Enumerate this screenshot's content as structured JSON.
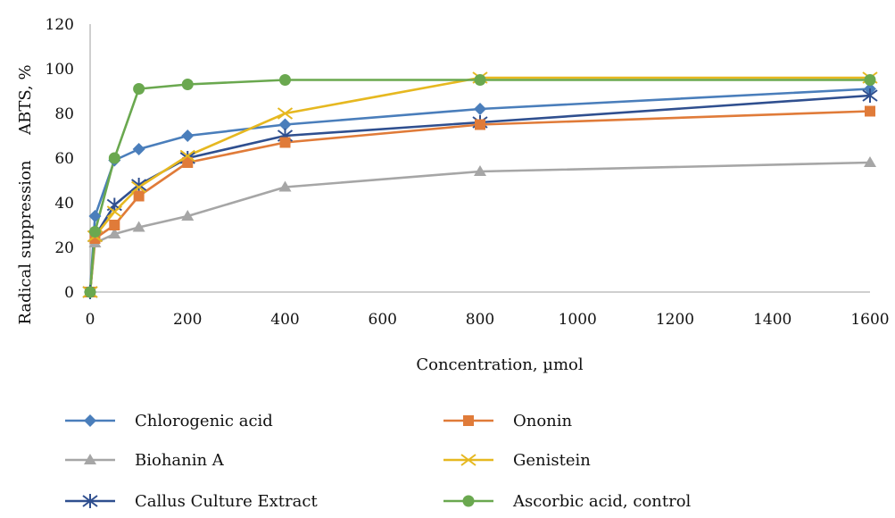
{
  "chart_data": {
    "type": "line",
    "title": "",
    "xlabel": "Concentration, µmol",
    "ylabel": "Radical suppression     ABTS, %",
    "xlim": [
      0,
      1600
    ],
    "ylim": [
      0,
      120
    ],
    "x_ticks": [
      0,
      200,
      400,
      600,
      800,
      1000,
      1200,
      1400,
      1600
    ],
    "y_ticks": [
      0,
      20,
      40,
      60,
      80,
      100,
      120
    ],
    "grid": false,
    "legend_position": "bottom",
    "series": [
      {
        "name": "Chlorogenic acid",
        "color": "#4a7ebb",
        "marker": "diamond",
        "x": [
          0,
          10,
          50,
          100,
          200,
          400,
          800,
          1600
        ],
        "y": [
          0,
          34,
          59,
          64,
          70,
          75,
          82,
          91
        ]
      },
      {
        "name": "Biohanin A",
        "color": "#a6a6a6",
        "marker": "triangle",
        "x": [
          0,
          10,
          50,
          100,
          200,
          400,
          800,
          1600
        ],
        "y": [
          0,
          22,
          26,
          29,
          34,
          47,
          54,
          58
        ]
      },
      {
        "name": "Callus Culture Extract",
        "color": "#2f4f8f",
        "marker": "asterisk",
        "x": [
          0,
          10,
          50,
          100,
          200,
          400,
          800,
          1600
        ],
        "y": [
          0,
          25,
          39,
          48,
          60,
          70,
          76,
          88
        ]
      },
      {
        "name": "Ononin",
        "color": "#e07b39",
        "marker": "square",
        "x": [
          0,
          10,
          50,
          100,
          200,
          400,
          800,
          1600
        ],
        "y": [
          0,
          24,
          30,
          43,
          58,
          67,
          75,
          81
        ]
      },
      {
        "name": "Genistein",
        "color": "#e6b820",
        "marker": "x",
        "x": [
          0,
          10,
          50,
          100,
          200,
          400,
          800,
          1600
        ],
        "y": [
          0,
          25,
          36,
          47,
          61,
          80,
          96,
          96
        ]
      },
      {
        "name": "Ascorbic acid, control",
        "color": "#6aa84f",
        "marker": "circle",
        "x": [
          0,
          10,
          50,
          100,
          200,
          400,
          800,
          1600
        ],
        "y": [
          0,
          27,
          60,
          91,
          93,
          95,
          95,
          95
        ]
      }
    ]
  }
}
